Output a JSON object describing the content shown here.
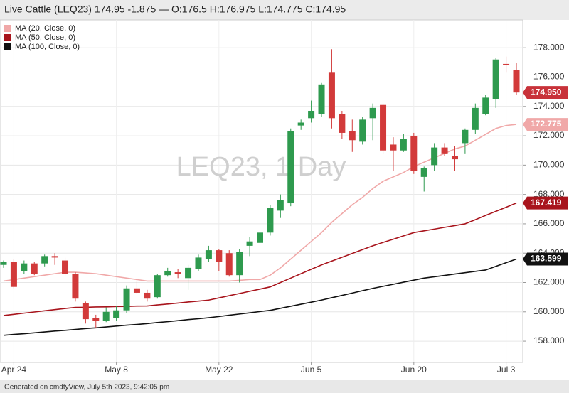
{
  "chart_data": {
    "type": "candlestick",
    "title": "Live Cattle (LEQ23) 174.95 -1.875 — O:176.5 H:176.975 L:174.775 C:174.95",
    "watermark": "LEQ23, 1 Day",
    "footer": "Generated on cmdtyView, July 5th 2023, 9:42:05 pm",
    "categories": [
      null,
      "Apr 24",
      null,
      null,
      null,
      null,
      null,
      null,
      null,
      null,
      null,
      "May 8",
      null,
      null,
      null,
      null,
      null,
      null,
      null,
      null,
      null,
      "May 22",
      null,
      null,
      null,
      null,
      null,
      null,
      null,
      null,
      "Jun 5",
      null,
      null,
      null,
      null,
      null,
      null,
      null,
      null,
      null,
      "Jun 20",
      null,
      null,
      null,
      null,
      null,
      null,
      null,
      null,
      "Jul 3",
      null
    ],
    "open": [
      163.2,
      163.4,
      162.8,
      163.3,
      163.3,
      163.8,
      163.5,
      162.6,
      160.6,
      159.6,
      159.4,
      159.6,
      160.1,
      161.6,
      161.3,
      161.0,
      162.5,
      162.7,
      162.3,
      162.9,
      163.6,
      164.2,
      164.0,
      162.5,
      164.5,
      164.7,
      165.4,
      166.9,
      167.4,
      172.7,
      173.2,
      173.5,
      176.3,
      173.5,
      172.3,
      171.6,
      173.2,
      174.1,
      171.4,
      171.0,
      172.0,
      169.2,
      170.0,
      171.2,
      170.6,
      171.5,
      172.4,
      173.5,
      174.5,
      176.9,
      176.5
    ],
    "high": [
      163.5,
      163.6,
      163.5,
      163.4,
      163.9,
      164.0,
      163.7,
      162.7,
      160.7,
      159.8,
      160.3,
      160.4,
      161.8,
      162.2,
      161.5,
      162.6,
      163.0,
      162.9,
      163.2,
      163.9,
      164.5,
      164.3,
      164.2,
      164.3,
      165.1,
      165.6,
      167.3,
      168.0,
      172.5,
      173.1,
      174.4,
      175.6,
      177.9,
      173.7,
      173.1,
      173.3,
      174.2,
      174.2,
      171.9,
      172.1,
      172.2,
      169.9,
      171.5,
      171.5,
      171.3,
      172.5,
      174.2,
      174.8,
      177.3,
      177.4,
      176.975
    ],
    "low": [
      163.0,
      161.6,
      162.6,
      162.5,
      163.1,
      163.2,
      162.4,
      160.7,
      159.2,
      158.9,
      159.3,
      159.4,
      159.9,
      161.2,
      160.7,
      160.9,
      162.4,
      162.3,
      161.5,
      162.8,
      163.4,
      162.8,
      162.4,
      162.0,
      163.8,
      164.5,
      165.2,
      166.4,
      167.2,
      172.4,
      172.9,
      173.3,
      172.5,
      171.8,
      170.9,
      171.4,
      171.7,
      170.8,
      169.6,
      170.9,
      169.4,
      168.2,
      169.6,
      170.6,
      169.6,
      170.8,
      172.1,
      173.4,
      173.9,
      176.3,
      174.775
    ],
    "close": [
      163.4,
      161.7,
      163.3,
      162.6,
      163.8,
      163.7,
      162.6,
      160.9,
      159.5,
      159.4,
      160.0,
      160.1,
      161.6,
      161.3,
      160.9,
      162.5,
      162.8,
      162.6,
      163.0,
      163.7,
      164.2,
      163.4,
      162.5,
      164.1,
      164.8,
      165.4,
      167.1,
      167.6,
      172.3,
      172.9,
      173.7,
      175.5,
      173.2,
      172.2,
      171.7,
      173.1,
      173.9,
      171.0,
      171.0,
      171.8,
      169.6,
      169.8,
      171.2,
      170.8,
      170.4,
      172.4,
      173.9,
      174.6,
      177.2,
      176.8,
      174.95
    ],
    "up_color": "#2e9a4e",
    "down_color": "#d23a3a",
    "series": [
      {
        "name": "MA (20, Close, 0)",
        "color": "#f0a8a8",
        "values": [
          162.1,
          162.2,
          162.3,
          162.4,
          162.5,
          162.6,
          162.7,
          162.7,
          162.65,
          162.6,
          162.5,
          162.4,
          162.3,
          162.2,
          162.1,
          162.1,
          162.1,
          162.1,
          162.1,
          162.1,
          162.1,
          162.1,
          162.1,
          162.15,
          162.2,
          162.2,
          162.5,
          163.0,
          163.6,
          164.2,
          164.8,
          165.4,
          166.1,
          166.7,
          167.3,
          167.8,
          168.4,
          168.9,
          169.2,
          169.5,
          169.9,
          170.2,
          170.5,
          170.8,
          171.1,
          171.3,
          171.7,
          172.1,
          172.5,
          172.7,
          172.775
        ]
      },
      {
        "name": "MA (50, Close, 0)",
        "color": "#a8141c",
        "values": [
          159.75,
          159.83,
          159.91,
          159.99,
          160.07,
          160.15,
          160.23,
          160.3,
          160.31,
          160.33,
          160.34,
          160.36,
          160.37,
          160.39,
          160.4,
          160.47,
          160.53,
          160.6,
          160.67,
          160.73,
          160.8,
          160.95,
          161.1,
          161.25,
          161.4,
          161.55,
          161.7,
          162.0,
          162.3,
          162.6,
          162.9,
          163.2,
          163.46,
          163.72,
          163.98,
          164.24,
          164.5,
          164.73,
          164.95,
          165.18,
          165.4,
          165.52,
          165.64,
          165.76,
          165.88,
          166.0,
          166.28,
          166.57,
          166.85,
          167.13,
          167.419
        ]
      },
      {
        "name": "MA (100, Close, 0)",
        "color": "#111111",
        "values": [
          158.4,
          158.46,
          158.51,
          158.57,
          158.63,
          158.69,
          158.74,
          158.8,
          158.86,
          158.91,
          158.97,
          159.03,
          159.09,
          159.14,
          159.2,
          159.27,
          159.33,
          159.4,
          159.47,
          159.53,
          159.6,
          159.68,
          159.77,
          159.85,
          159.93,
          160.02,
          160.1,
          160.24,
          160.38,
          160.52,
          160.66,
          160.8,
          160.96,
          161.12,
          161.28,
          161.44,
          161.6,
          161.74,
          161.88,
          162.02,
          162.16,
          162.3,
          162.39,
          162.48,
          162.58,
          162.67,
          162.76,
          162.85,
          163.1,
          163.35,
          163.599
        ]
      }
    ],
    "price_tags": [
      {
        "value": 174.95,
        "label": "174.950",
        "color": "#c8323a"
      },
      {
        "value": 172.775,
        "label": "172.775",
        "color": "#f0a8a8"
      },
      {
        "value": 167.419,
        "label": "167.419",
        "color": "#a8141c"
      },
      {
        "value": 163.599,
        "label": "163.599",
        "color": "#111111"
      }
    ],
    "ylim": [
      156.55,
      179.9
    ],
    "yticks": [
      {
        "value": 158,
        "label": "158.000"
      },
      {
        "value": 160,
        "label": "160.000"
      },
      {
        "value": 162,
        "label": "162.000"
      },
      {
        "value": 164,
        "label": "164.000"
      },
      {
        "value": 166,
        "label": "166.000"
      },
      {
        "value": 168,
        "label": "168.000"
      },
      {
        "value": 170,
        "label": "170.000"
      },
      {
        "value": 172,
        "label": "172.000"
      },
      {
        "value": 174,
        "label": "174.000"
      },
      {
        "value": 176,
        "label": "176.000"
      },
      {
        "value": 178,
        "label": "178.000"
      }
    ],
    "grid": true
  }
}
